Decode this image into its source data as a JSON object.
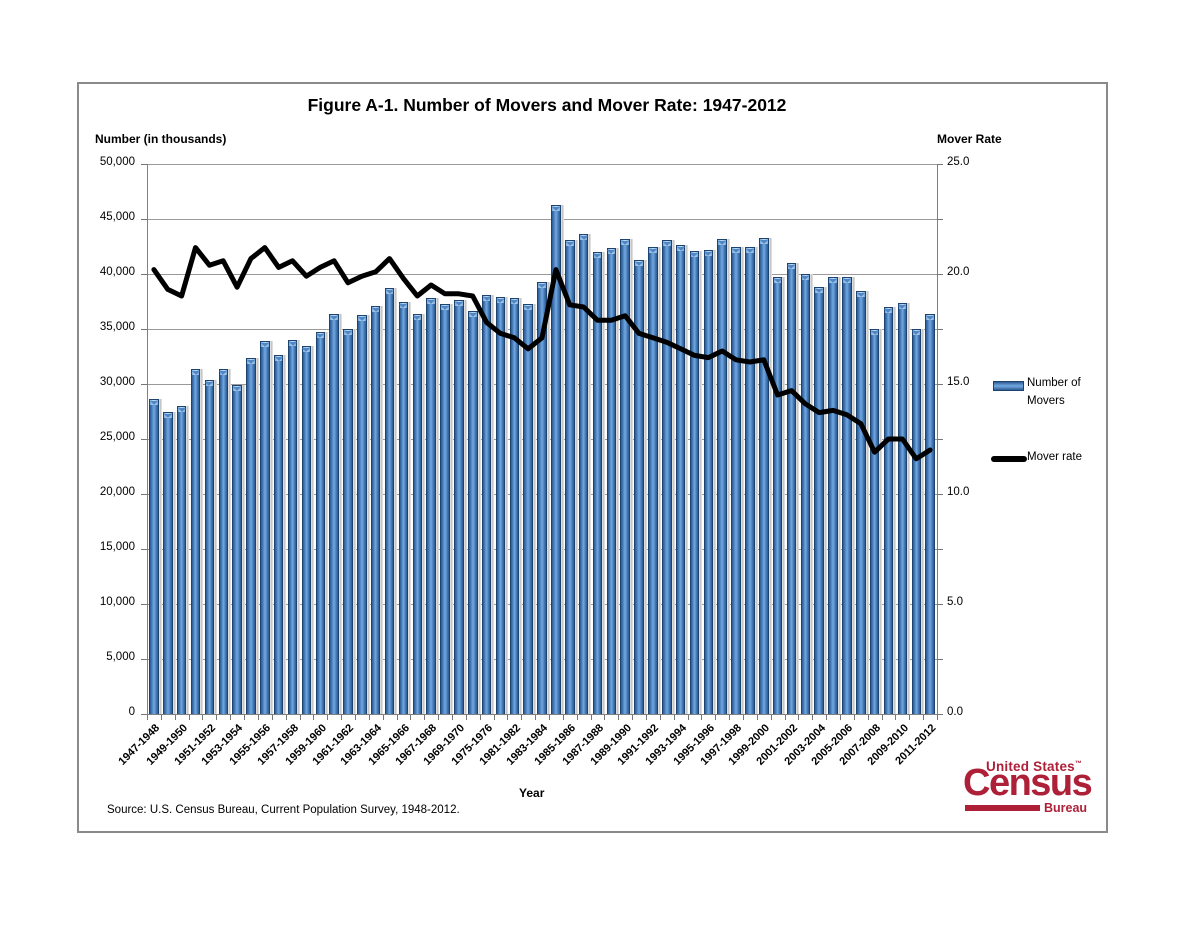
{
  "figure": {
    "title": "Figure A-1. Number of Movers and Mover Rate: 1947-2012",
    "left_axis_title": "Number (in thousands)",
    "right_axis_title": "Mover Rate",
    "x_axis_title": "Year",
    "source_note": "Source: U.S. Census Bureau, Current Population Survey, 1948-2012.",
    "legend": {
      "bars_label_line1": "Number of",
      "bars_label_line2": "Movers",
      "line_label": "Mover rate"
    },
    "logo": {
      "line1": "United States",
      "tm": "™",
      "line2": "Census",
      "line3": "Bureau",
      "color": "#ae1f38"
    }
  },
  "colors": {
    "bar_edge": "#2d5b93",
    "bar_mid": "#6da3dc",
    "bar_border": "#1d4470",
    "bar_cap": "#c3ddf2",
    "line": "#000000",
    "grid": "#9a9a9a",
    "axis": "#808080",
    "logo_red": "#ae1f38"
  },
  "chart_data": {
    "type": "bar",
    "subtype": "bar-and-line-combo",
    "title": "Figure A-1. Number of Movers and Mover Rate: 1947-2012",
    "xlabel": "Year",
    "ylabel_left": "Number (in thousands)",
    "ylabel_right": "Mover Rate",
    "grid": "horizontal",
    "legend_position": "right",
    "label_every": 2,
    "categories": [
      "1947-1948",
      "1948-1949",
      "1949-1950",
      "1950-1951",
      "1951-1952",
      "1952-1953",
      "1953-1954",
      "1954-1955",
      "1955-1956",
      "1956-1957",
      "1957-1958",
      "1958-1959",
      "1959-1960",
      "1960-1961",
      "1961-1962",
      "1962-1963",
      "1963-1964",
      "1964-1965",
      "1965-1966",
      "1966-1967",
      "1967-1968",
      "1968-1969",
      "1969-1970",
      "1970-1971",
      "1975-1976",
      "1980-1981",
      "1981-1982",
      "1982-1983",
      "1983-1984",
      "1984-1985",
      "1985-1986",
      "1986-1987",
      "1987-1988",
      "1988-1989",
      "1989-1990",
      "1990-1991",
      "1991-1992",
      "1992-1993",
      "1993-1994",
      "1994-1995",
      "1995-1996",
      "1996-1997",
      "1997-1998",
      "1998-1999",
      "1999-2000",
      "2000-2001",
      "2001-2002",
      "2002-2003",
      "2003-2004",
      "2004-2005",
      "2005-2006",
      "2006-2007",
      "2007-2008",
      "2008-2009",
      "2009-2010",
      "2010-2011",
      "2011-2012"
    ],
    "series": [
      {
        "name": "Number of Movers",
        "type": "bar",
        "axis": "left",
        "values": [
          28600,
          27500,
          28000,
          31400,
          30400,
          31400,
          29900,
          32400,
          33900,
          32600,
          34000,
          33500,
          34700,
          36400,
          35000,
          36300,
          37100,
          38700,
          37500,
          36400,
          37800,
          37300,
          37600,
          36600,
          38100,
          37900,
          37800,
          37300,
          39300,
          46300,
          43100,
          43600,
          42000,
          42400,
          43200,
          41300,
          42500,
          43100,
          42600,
          42100,
          42200,
          43200,
          42500,
          42500,
          43300,
          39700,
          41000,
          40000,
          38800,
          39700,
          39700,
          38500,
          35000,
          37000,
          37400,
          35000,
          36400
        ]
      },
      {
        "name": "Mover rate",
        "type": "line",
        "axis": "right",
        "values": [
          20.2,
          19.3,
          19.0,
          21.2,
          20.4,
          20.6,
          19.4,
          20.7,
          21.2,
          20.3,
          20.6,
          19.9,
          20.3,
          20.6,
          19.6,
          19.9,
          20.1,
          20.7,
          19.8,
          19.0,
          19.5,
          19.1,
          19.1,
          19.0,
          17.8,
          17.3,
          17.1,
          16.6,
          17.1,
          20.2,
          18.6,
          18.5,
          17.9,
          17.9,
          18.1,
          17.3,
          17.1,
          16.9,
          16.6,
          16.3,
          16.2,
          16.5,
          16.1,
          16.0,
          16.1,
          14.5,
          14.7,
          14.1,
          13.7,
          13.8,
          13.6,
          13.2,
          11.9,
          12.5,
          12.5,
          11.6,
          12.0
        ]
      }
    ],
    "left_axis": {
      "min": 0,
      "max": 50000,
      "step": 5000,
      "tick_labels": [
        "50,000",
        "45,000",
        "40,000",
        "35,000",
        "30,000",
        "25,000",
        "20,000",
        "15,000",
        "10,000",
        "5,000",
        "0"
      ]
    },
    "right_axis": {
      "min": 0,
      "max": 25,
      "step": 5,
      "tick_labels": [
        "25.0",
        "20.0",
        "15.0",
        "10.0",
        "5.0",
        "0.0"
      ]
    }
  }
}
